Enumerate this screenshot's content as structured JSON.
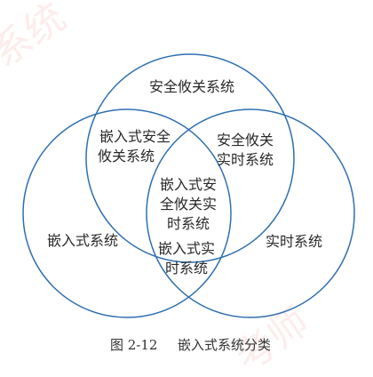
{
  "colors": {
    "circle_stroke": "#2f6fb0",
    "text": "#2a2a2a",
    "background": "#ffffff"
  },
  "diagram": {
    "regions": {
      "safety_only": "安全攸关系统",
      "embedded_safety": [
        "嵌入式安全",
        "攸关系统"
      ],
      "safety_realtime": [
        "安全攸关",
        "实时系统"
      ],
      "center": [
        "嵌入式安",
        "全攸关实",
        "时系统"
      ],
      "embedded_only": "嵌入式系统",
      "realtime_only": "实时系统",
      "embedded_realtime": [
        "嵌入式实",
        "时系统"
      ]
    }
  },
  "caption": {
    "figure_number": "图 2-12",
    "title": "嵌入式系统分类"
  }
}
